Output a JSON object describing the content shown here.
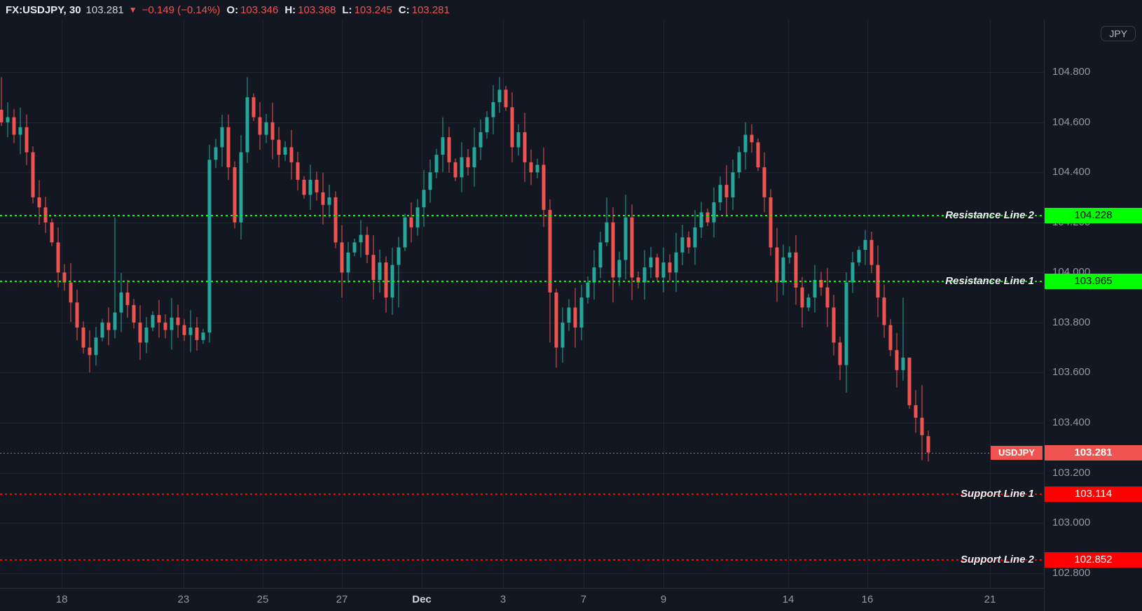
{
  "header": {
    "symbol_interval": "FX:USDJPY, 30",
    "last_price": "103.281",
    "direction_icon": "▼",
    "change": "−0.149 (−0.14%)",
    "ohlc": [
      {
        "label": "O:",
        "value": "103.346"
      },
      {
        "label": "H:",
        "value": "103.368"
      },
      {
        "label": "L:",
        "value": "103.245"
      },
      {
        "label": "C:",
        "value": "103.281"
      }
    ]
  },
  "price_axis": {
    "currency_button": "JPY"
  },
  "colors": {
    "background": "#131722",
    "up_candle": "#26a69a",
    "down_candle": "#ef5350",
    "resistance": "#00ff00",
    "support": "#ff0000",
    "last_price": "#ef5350",
    "axis_text": "#9598a1"
  },
  "chart_data": {
    "type": "candlestick",
    "title": "FX:USDJPY 30",
    "y_axis": {
      "range": [
        102.74,
        105.01
      ],
      "ticks": [
        104.8,
        104.6,
        104.4,
        104.2,
        104.0,
        103.8,
        103.6,
        103.4,
        103.2,
        103.0,
        102.8
      ]
    },
    "x_axis": {
      "labels": [
        {
          "text": "18",
          "x": 0.0591,
          "bold": false
        },
        {
          "text": "23",
          "x": 0.1758,
          "bold": false
        },
        {
          "text": "25",
          "x": 0.2517,
          "bold": false
        },
        {
          "text": "27",
          "x": 0.3275,
          "bold": false
        },
        {
          "text": "Dec",
          "x": 0.404,
          "bold": true
        },
        {
          "text": "3",
          "x": 0.4819,
          "bold": false
        },
        {
          "text": "7",
          "x": 0.559,
          "bold": false
        },
        {
          "text": "9",
          "x": 0.6356,
          "bold": false
        },
        {
          "text": "14",
          "x": 0.755,
          "bold": false
        },
        {
          "text": "16",
          "x": 0.8309,
          "bold": false
        },
        {
          "text": "21",
          "x": 0.9483,
          "bold": false
        }
      ]
    },
    "levels": [
      {
        "name": "Resistance Line 2",
        "price": 104.228,
        "color": "#00ff00",
        "text_color": "#000000"
      },
      {
        "name": "Resistance Line 1",
        "price": 103.965,
        "color": "#00ff00",
        "text_color": "#000000"
      },
      {
        "name": "Support Line 1",
        "price": 103.114,
        "color": "#ff0000",
        "text_color": "#ffffff"
      },
      {
        "name": "Support Line 2",
        "price": 102.852,
        "color": "#ff0000",
        "text_color": "#ffffff"
      }
    ],
    "last_price_marker": {
      "symbol_label": "USDJPY",
      "price": 103.281,
      "color": "#ef5350",
      "text_color": "#ffffff"
    },
    "last_bar": {
      "open": 103.346,
      "high": 103.368,
      "low": 103.245,
      "close": 103.281,
      "change": -0.149,
      "change_pct": -0.14
    },
    "candles": {
      "first_open": 104.65,
      "closes": [
        104.6,
        104.62,
        104.55,
        104.58,
        104.48,
        104.3,
        104.26,
        104.2,
        104.12,
        104.0,
        103.96,
        103.88,
        103.78,
        103.7,
        103.67,
        103.74,
        103.8,
        103.77,
        103.84,
        103.92,
        103.87,
        103.8,
        103.72,
        103.78,
        103.83,
        103.8,
        103.77,
        103.82,
        103.79,
        103.75,
        103.78,
        103.73,
        103.76,
        104.45,
        104.5,
        104.58,
        104.42,
        104.2,
        104.48,
        104.7,
        104.62,
        104.55,
        104.6,
        104.53,
        104.47,
        104.5,
        104.44,
        104.37,
        104.31,
        104.37,
        104.32,
        104.27,
        104.3,
        104.12,
        104.0,
        104.08,
        104.12,
        104.15,
        104.07,
        103.97,
        104.04,
        103.9,
        104.03,
        104.1,
        104.22,
        104.18,
        104.26,
        104.33,
        104.4,
        104.47,
        104.54,
        104.44,
        104.38,
        104.46,
        104.42,
        104.5,
        104.56,
        104.62,
        104.68,
        104.73,
        104.66,
        104.5,
        104.56,
        104.44,
        104.4,
        104.43,
        104.25,
        103.92,
        103.7,
        103.8,
        103.86,
        103.78,
        103.9,
        103.96,
        104.02,
        104.12,
        104.2,
        103.98,
        104.05,
        104.22,
        103.98,
        103.96,
        104.02,
        104.06,
        103.98,
        104.04,
        104.0,
        104.08,
        104.14,
        104.1,
        104.18,
        104.24,
        104.2,
        104.28,
        104.35,
        104.3,
        104.4,
        104.48,
        104.55,
        104.52,
        104.42,
        104.3,
        104.1,
        103.96,
        104.06,
        104.08,
        103.94,
        103.86,
        103.9,
        103.97,
        103.94,
        103.86,
        103.72,
        103.63,
        103.96,
        104.04,
        104.09,
        104.13,
        104.03,
        103.9,
        103.79,
        103.69,
        103.61,
        103.66,
        103.47,
        103.42,
        103.35,
        103.281
      ],
      "overrides": {
        "0": {
          "h": 104.78
        },
        "18": {
          "h": 104.22
        },
        "33": {
          "l": 103.72
        },
        "35": {
          "h": 104.63
        },
        "39": {
          "h": 104.78
        },
        "54": {
          "l": 103.9
        },
        "61": {
          "l": 103.84
        },
        "63": {
          "l": 103.86
        },
        "70": {
          "h": 104.62
        },
        "79": {
          "h": 104.78
        },
        "87": {
          "l": 103.72
        },
        "88": {
          "l": 103.62
        },
        "91": {
          "l": 103.7
        },
        "96": {
          "h": 104.3
        },
        "97": {
          "l": 103.88
        },
        "99": {
          "h": 104.31
        },
        "100": {
          "l": 103.89
        },
        "118": {
          "h": 104.6
        },
        "127": {
          "l": 103.78
        },
        "133": {
          "l": 103.57
        },
        "134": {
          "l": 103.52,
          "h": 104.0
        },
        "137": {
          "h": 104.17
        },
        "143": {
          "h": 103.9
        },
        "144": {
          "h": 103.62
        },
        "146": {
          "l": 103.25,
          "h": 103.55
        },
        "147": {
          "o": 103.346,
          "h": 103.368,
          "l": 103.245
        }
      }
    }
  }
}
